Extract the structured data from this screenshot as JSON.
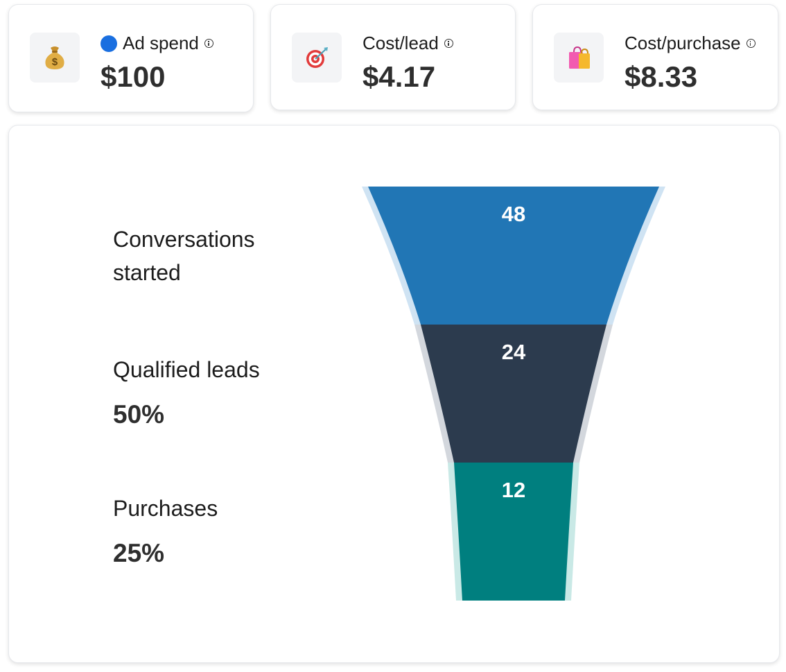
{
  "kpis": [
    {
      "label": "Ad spend",
      "value": "$100",
      "icon": "money-bag-icon",
      "dot_color": "#1a6fe0"
    },
    {
      "label": "Cost/lead",
      "value": "$4.17",
      "icon": "target-icon"
    },
    {
      "label": "Cost/purchase",
      "value": "$8.33",
      "icon": "shopping-bags-icon"
    }
  ],
  "chart_data": {
    "type": "funnel",
    "stages": [
      {
        "name": "Conversations started",
        "value": 48,
        "percent": "",
        "color": "#2176b5",
        "halo": "#cfe3f3"
      },
      {
        "name": "Qualified leads",
        "value": 24,
        "percent": "50%",
        "color": "#2c3b4e",
        "halo": "#d3d7dd"
      },
      {
        "name": "Purchases",
        "value": 12,
        "percent": "25%",
        "color": "#007f7f",
        "halo": "#c9e9e6"
      }
    ]
  }
}
